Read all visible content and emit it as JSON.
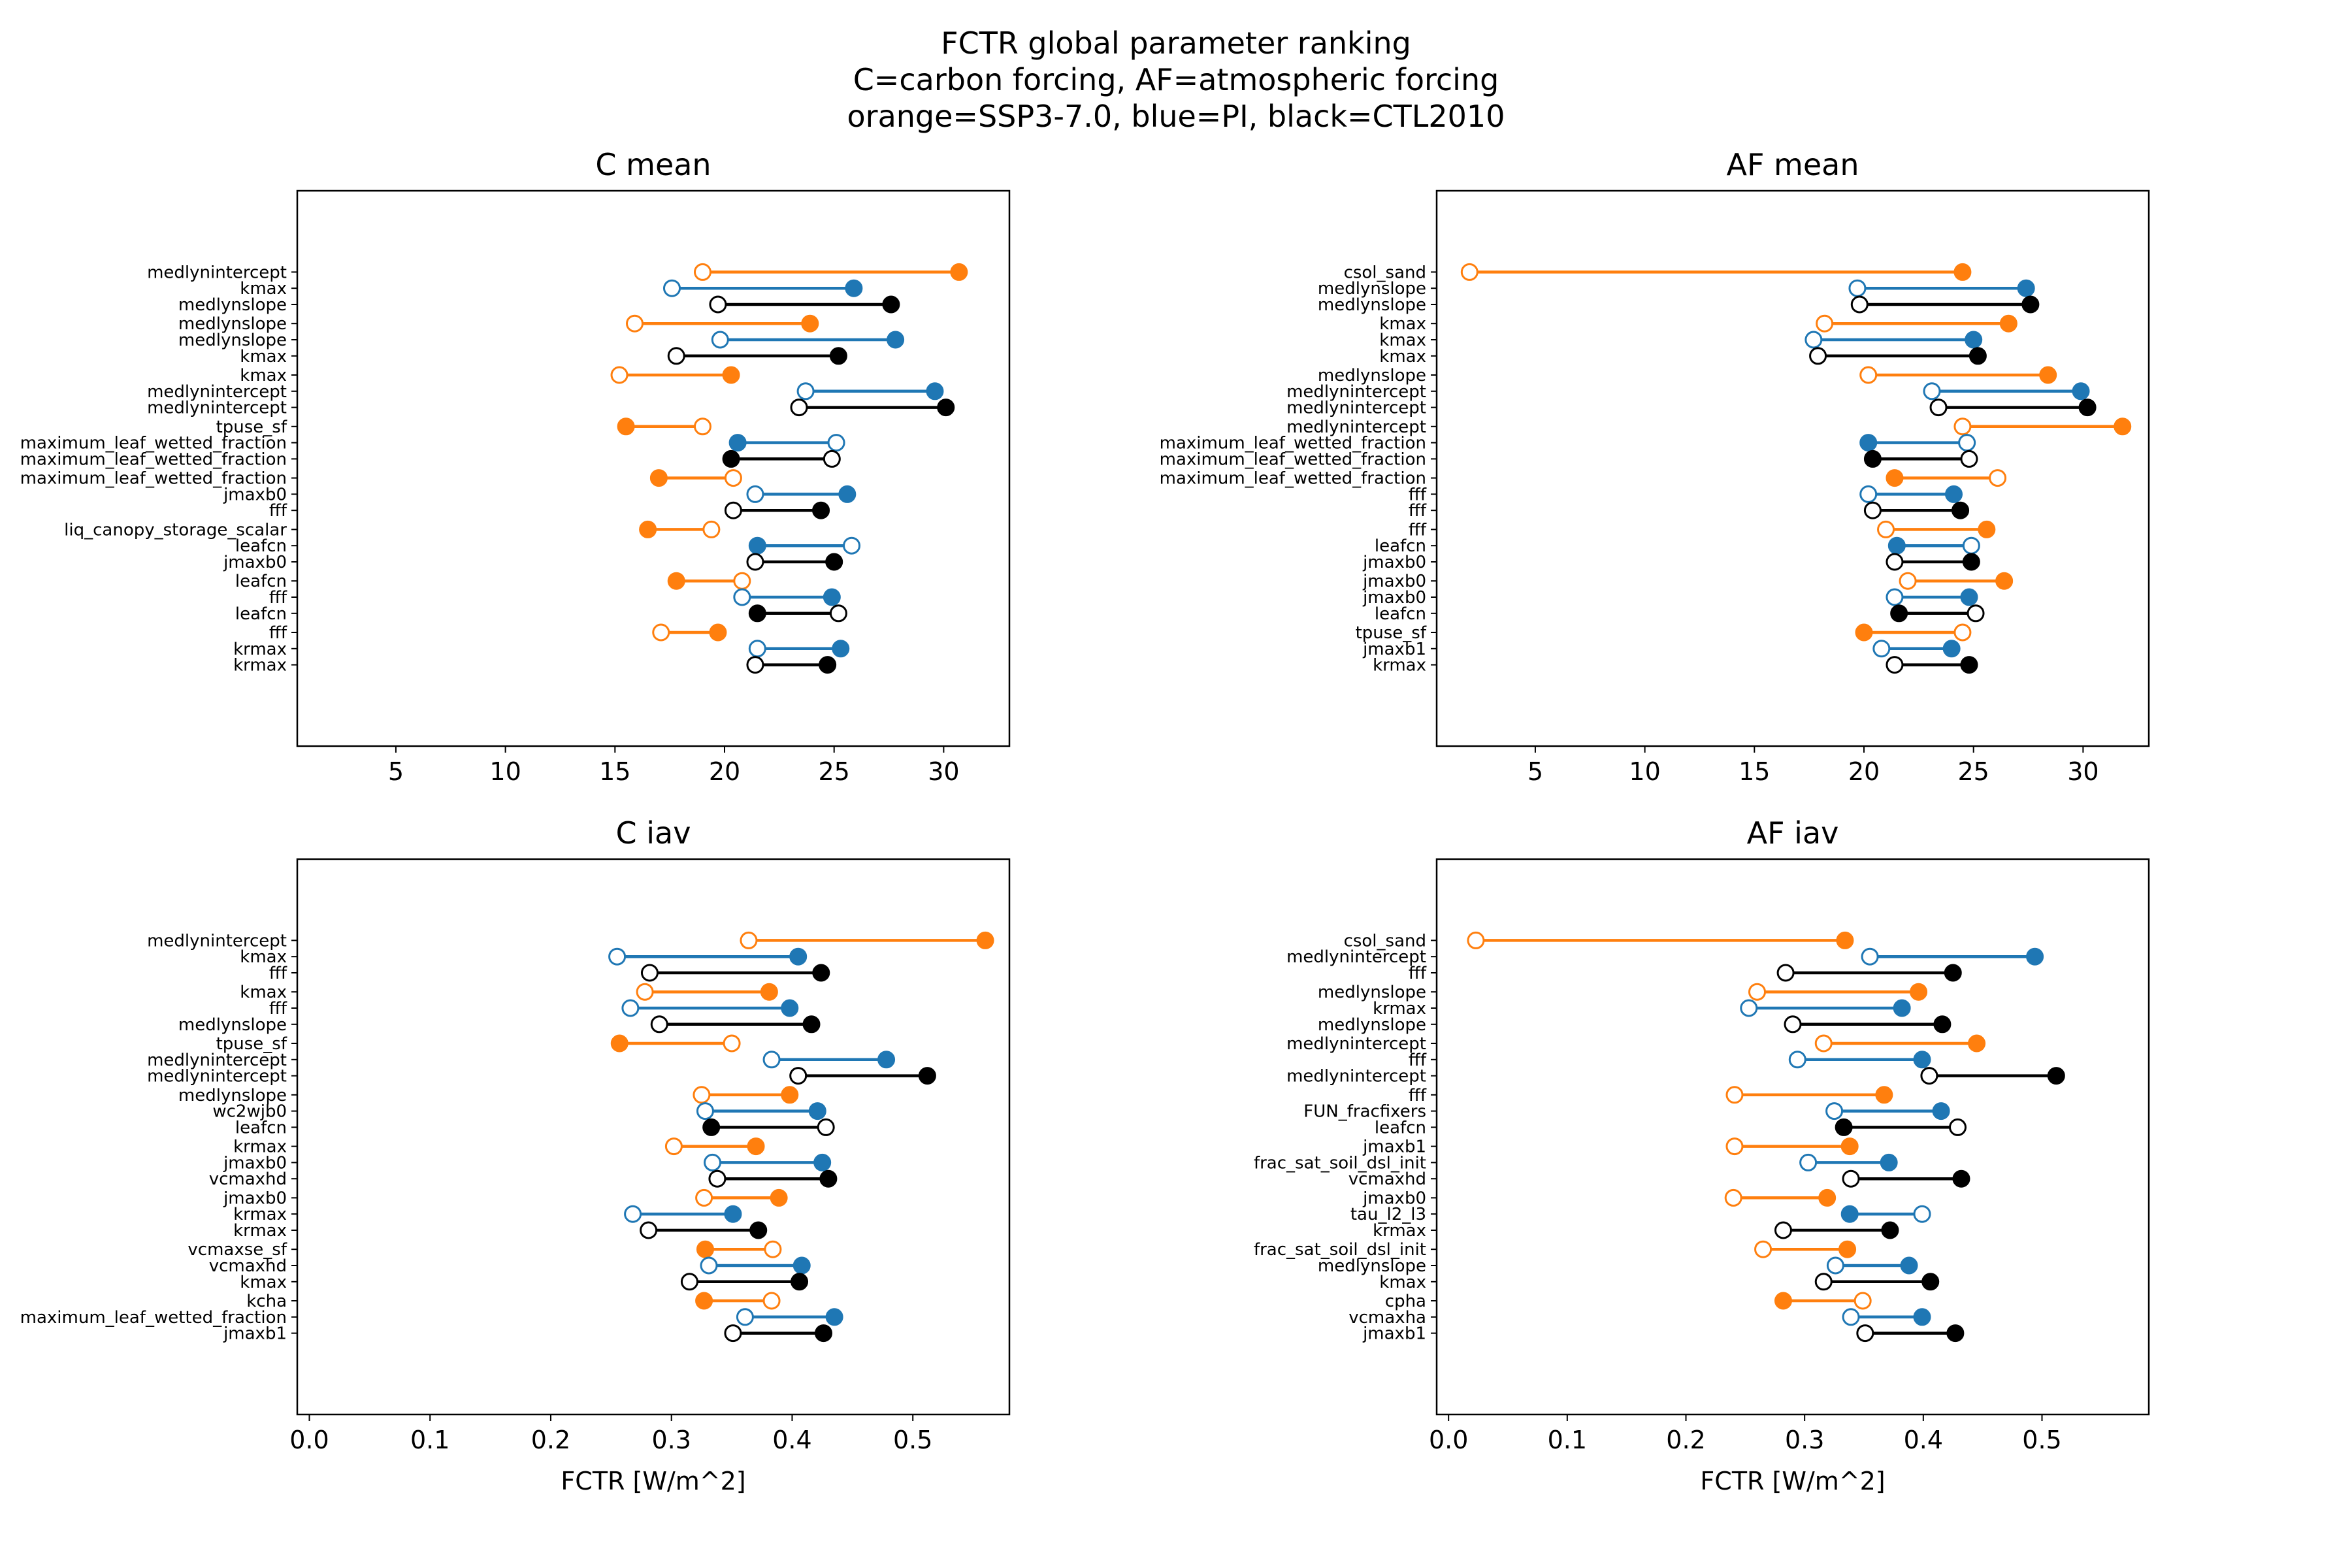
{
  "figure": {
    "title_lines": [
      "FCTR global parameter ranking",
      "C=carbon forcing, AF=atmospheric forcing",
      "orange=SSP3-7.0, blue=PI, black=CTL2010"
    ]
  },
  "colors": {
    "SSP3-7.0": "#ff7f0e",
    "PI": "#1f77b4",
    "CTL2010": "#000000"
  },
  "chart_data": [
    {
      "type": "dumbbell",
      "title": "C mean",
      "xlabel": "",
      "xlim": [
        0.5,
        33.0
      ],
      "xticks": [
        5,
        10,
        15,
        20,
        25,
        30
      ],
      "xtick_labels": [
        "5",
        "10",
        "15",
        "20",
        "25",
        "30"
      ],
      "marker_legend": "open circle = start value, filled circle = end value",
      "groups": [
        [
          {
            "label": "medlynintercept",
            "series": "SSP3-7.0",
            "open": 19.0,
            "filled": 30.7
          },
          {
            "label": "kmax",
            "series": "PI",
            "open": 17.6,
            "filled": 25.9
          },
          {
            "label": "medlynslope",
            "series": "CTL2010",
            "open": 19.7,
            "filled": 27.6
          }
        ],
        [
          {
            "label": "medlynslope",
            "series": "SSP3-7.0",
            "open": 15.9,
            "filled": 23.9
          },
          {
            "label": "medlynslope",
            "series": "PI",
            "open": 19.8,
            "filled": 27.8
          },
          {
            "label": "kmax",
            "series": "CTL2010",
            "open": 17.8,
            "filled": 25.2
          }
        ],
        [
          {
            "label": "kmax",
            "series": "SSP3-7.0",
            "open": 15.2,
            "filled": 20.3
          },
          {
            "label": "medlynintercept",
            "series": "PI",
            "open": 23.7,
            "filled": 29.6
          },
          {
            "label": "medlynintercept",
            "series": "CTL2010",
            "open": 23.4,
            "filled": 30.1
          }
        ],
        [
          {
            "label": "tpuse_sf",
            "series": "SSP3-7.0",
            "open": 19.0,
            "filled": 15.5
          },
          {
            "label": "maximum_leaf_wetted_fraction",
            "series": "PI",
            "open": 25.1,
            "filled": 20.6
          },
          {
            "label": "maximum_leaf_wetted_fraction",
            "series": "CTL2010",
            "open": 24.9,
            "filled": 20.3
          }
        ],
        [
          {
            "label": "maximum_leaf_wetted_fraction",
            "series": "SSP3-7.0",
            "open": 20.4,
            "filled": 17.0
          },
          {
            "label": "jmaxb0",
            "series": "PI",
            "open": 21.4,
            "filled": 25.6
          },
          {
            "label": "fff",
            "series": "CTL2010",
            "open": 20.4,
            "filled": 24.4
          }
        ],
        [
          {
            "label": "liq_canopy_storage_scalar",
            "series": "SSP3-7.0",
            "open": 19.4,
            "filled": 16.5
          },
          {
            "label": "leafcn",
            "series": "PI",
            "open": 25.8,
            "filled": 21.5
          },
          {
            "label": "jmaxb0",
            "series": "CTL2010",
            "open": 21.4,
            "filled": 25.0
          }
        ],
        [
          {
            "label": "leafcn",
            "series": "SSP3-7.0",
            "open": 20.8,
            "filled": 17.8
          },
          {
            "label": "fff",
            "series": "PI",
            "open": 20.8,
            "filled": 24.9
          },
          {
            "label": "leafcn",
            "series": "CTL2010",
            "open": 25.2,
            "filled": 21.5
          }
        ],
        [
          {
            "label": "fff",
            "series": "SSP3-7.0",
            "open": 17.1,
            "filled": 19.7
          },
          {
            "label": "krmax",
            "series": "PI",
            "open": 21.5,
            "filled": 25.3
          },
          {
            "label": "krmax",
            "series": "CTL2010",
            "open": 21.4,
            "filled": 24.7
          }
        ]
      ]
    },
    {
      "type": "dumbbell",
      "title": "AF mean",
      "xlabel": "",
      "xlim": [
        0.5,
        33.0
      ],
      "xticks": [
        5,
        10,
        15,
        20,
        25,
        30
      ],
      "xtick_labels": [
        "5",
        "10",
        "15",
        "20",
        "25",
        "30"
      ],
      "marker_legend": "open circle = start value, filled circle = end value",
      "groups": [
        [
          {
            "label": "csol_sand",
            "series": "SSP3-7.0",
            "open": 2.0,
            "filled": 24.5
          },
          {
            "label": "medlynslope",
            "series": "PI",
            "open": 19.7,
            "filled": 27.4
          },
          {
            "label": "medlynslope",
            "series": "CTL2010",
            "open": 19.8,
            "filled": 27.6
          }
        ],
        [
          {
            "label": "kmax",
            "series": "SSP3-7.0",
            "open": 18.2,
            "filled": 26.6
          },
          {
            "label": "kmax",
            "series": "PI",
            "open": 17.7,
            "filled": 25.0
          },
          {
            "label": "kmax",
            "series": "CTL2010",
            "open": 17.9,
            "filled": 25.2
          }
        ],
        [
          {
            "label": "medlynslope",
            "series": "SSP3-7.0",
            "open": 20.2,
            "filled": 28.4
          },
          {
            "label": "medlynintercept",
            "series": "PI",
            "open": 23.1,
            "filled": 29.9
          },
          {
            "label": "medlynintercept",
            "series": "CTL2010",
            "open": 23.4,
            "filled": 30.2
          }
        ],
        [
          {
            "label": "medlynintercept",
            "series": "SSP3-7.0",
            "open": 24.5,
            "filled": 31.8
          },
          {
            "label": "maximum_leaf_wetted_fraction",
            "series": "PI",
            "open": 24.7,
            "filled": 20.2
          },
          {
            "label": "maximum_leaf_wetted_fraction",
            "series": "CTL2010",
            "open": 24.8,
            "filled": 20.4
          }
        ],
        [
          {
            "label": "maximum_leaf_wetted_fraction",
            "series": "SSP3-7.0",
            "open": 26.1,
            "filled": 21.4
          },
          {
            "label": "fff",
            "series": "PI",
            "open": 20.2,
            "filled": 24.1
          },
          {
            "label": "fff",
            "series": "CTL2010",
            "open": 20.4,
            "filled": 24.4
          }
        ],
        [
          {
            "label": "fff",
            "series": "SSP3-7.0",
            "open": 21.0,
            "filled": 25.6
          },
          {
            "label": "leafcn",
            "series": "PI",
            "open": 24.9,
            "filled": 21.5
          },
          {
            "label": "jmaxb0",
            "series": "CTL2010",
            "open": 21.4,
            "filled": 24.9
          }
        ],
        [
          {
            "label": "jmaxb0",
            "series": "SSP3-7.0",
            "open": 22.0,
            "filled": 26.4
          },
          {
            "label": "jmaxb0",
            "series": "PI",
            "open": 21.4,
            "filled": 24.8
          },
          {
            "label": "leafcn",
            "series": "CTL2010",
            "open": 25.1,
            "filled": 21.6
          }
        ],
        [
          {
            "label": "tpuse_sf",
            "series": "SSP3-7.0",
            "open": 24.5,
            "filled": 20.0
          },
          {
            "label": "jmaxb1",
            "series": "PI",
            "open": 20.8,
            "filled": 24.0
          },
          {
            "label": "krmax",
            "series": "CTL2010",
            "open": 21.4,
            "filled": 24.8
          }
        ]
      ]
    },
    {
      "type": "dumbbell",
      "title": "C iav",
      "xlabel": "FCTR [W/m^2]",
      "xlim": [
        -0.01,
        0.58
      ],
      "xticks": [
        0.0,
        0.1,
        0.2,
        0.3,
        0.4,
        0.5
      ],
      "xtick_labels": [
        "0.0",
        "0.1",
        "0.2",
        "0.3",
        "0.4",
        "0.5"
      ],
      "marker_legend": "open circle = start value, filled circle = end value",
      "groups": [
        [
          {
            "label": "medlynintercept",
            "series": "SSP3-7.0",
            "open": 0.364,
            "filled": 0.56
          },
          {
            "label": "kmax",
            "series": "PI",
            "open": 0.255,
            "filled": 0.405
          },
          {
            "label": "fff",
            "series": "CTL2010",
            "open": 0.282,
            "filled": 0.424
          }
        ],
        [
          {
            "label": "kmax",
            "series": "SSP3-7.0",
            "open": 0.278,
            "filled": 0.381
          },
          {
            "label": "fff",
            "series": "PI",
            "open": 0.266,
            "filled": 0.398
          },
          {
            "label": "medlynslope",
            "series": "CTL2010",
            "open": 0.29,
            "filled": 0.416
          }
        ],
        [
          {
            "label": "tpuse_sf",
            "series": "SSP3-7.0",
            "open": 0.35,
            "filled": 0.257
          },
          {
            "label": "medlynintercept",
            "series": "PI",
            "open": 0.383,
            "filled": 0.478
          },
          {
            "label": "medlynintercept",
            "series": "CTL2010",
            "open": 0.405,
            "filled": 0.512
          }
        ],
        [
          {
            "label": "medlynslope",
            "series": "SSP3-7.0",
            "open": 0.325,
            "filled": 0.398
          },
          {
            "label": "wc2wjb0",
            "series": "PI",
            "open": 0.328,
            "filled": 0.421
          },
          {
            "label": "leafcn",
            "series": "CTL2010",
            "open": 0.428,
            "filled": 0.333
          }
        ],
        [
          {
            "label": "krmax",
            "series": "SSP3-7.0",
            "open": 0.302,
            "filled": 0.37
          },
          {
            "label": "jmaxb0",
            "series": "PI",
            "open": 0.334,
            "filled": 0.425
          },
          {
            "label": "vcmaxhd",
            "series": "CTL2010",
            "open": 0.338,
            "filled": 0.43
          }
        ],
        [
          {
            "label": "jmaxb0",
            "series": "SSP3-7.0",
            "open": 0.327,
            "filled": 0.389
          },
          {
            "label": "krmax",
            "series": "PI",
            "open": 0.268,
            "filled": 0.351
          },
          {
            "label": "krmax",
            "series": "CTL2010",
            "open": 0.281,
            "filled": 0.372
          }
        ],
        [
          {
            "label": "vcmaxse_sf",
            "series": "SSP3-7.0",
            "open": 0.384,
            "filled": 0.328
          },
          {
            "label": "vcmaxhd",
            "series": "PI",
            "open": 0.331,
            "filled": 0.408
          },
          {
            "label": "kmax",
            "series": "CTL2010",
            "open": 0.315,
            "filled": 0.406
          }
        ],
        [
          {
            "label": "kcha",
            "series": "SSP3-7.0",
            "open": 0.383,
            "filled": 0.327
          },
          {
            "label": "maximum_leaf_wetted_fraction",
            "series": "PI",
            "open": 0.361,
            "filled": 0.435
          },
          {
            "label": "jmaxb1",
            "series": "CTL2010",
            "open": 0.351,
            "filled": 0.426
          }
        ]
      ]
    },
    {
      "type": "dumbbell",
      "title": "AF iav",
      "xlabel": "FCTR [W/m^2]",
      "xlim": [
        -0.01,
        0.59
      ],
      "xticks": [
        0.0,
        0.1,
        0.2,
        0.3,
        0.4,
        0.5
      ],
      "xtick_labels": [
        "0.0",
        "0.1",
        "0.2",
        "0.3",
        "0.4",
        "0.5"
      ],
      "marker_legend": "open circle = start value, filled circle = end value",
      "groups": [
        [
          {
            "label": "csol_sand",
            "series": "SSP3-7.0",
            "open": 0.023,
            "filled": 0.334
          },
          {
            "label": "medlynintercept",
            "series": "PI",
            "open": 0.355,
            "filled": 0.494
          },
          {
            "label": "fff",
            "series": "CTL2010",
            "open": 0.284,
            "filled": 0.425
          }
        ],
        [
          {
            "label": "medlynslope",
            "series": "SSP3-7.0",
            "open": 0.26,
            "filled": 0.396
          },
          {
            "label": "krmax",
            "series": "PI",
            "open": 0.253,
            "filled": 0.382
          },
          {
            "label": "medlynslope",
            "series": "CTL2010",
            "open": 0.29,
            "filled": 0.416
          }
        ],
        [
          {
            "label": "medlynintercept",
            "series": "SSP3-7.0",
            "open": 0.316,
            "filled": 0.445
          },
          {
            "label": "fff",
            "series": "PI",
            "open": 0.294,
            "filled": 0.399
          },
          {
            "label": "medlynintercept",
            "series": "CTL2010",
            "open": 0.405,
            "filled": 0.512
          }
        ],
        [
          {
            "label": "fff",
            "series": "SSP3-7.0",
            "open": 0.241,
            "filled": 0.367
          },
          {
            "label": "FUN_fracfixers",
            "series": "PI",
            "open": 0.325,
            "filled": 0.415
          },
          {
            "label": "leafcn",
            "series": "CTL2010",
            "open": 0.429,
            "filled": 0.333
          }
        ],
        [
          {
            "label": "jmaxb1",
            "series": "SSP3-7.0",
            "open": 0.241,
            "filled": 0.338
          },
          {
            "label": "frac_sat_soil_dsl_init",
            "series": "PI",
            "open": 0.303,
            "filled": 0.371
          },
          {
            "label": "vcmaxhd",
            "series": "CTL2010",
            "open": 0.339,
            "filled": 0.432
          }
        ],
        [
          {
            "label": "jmaxb0",
            "series": "SSP3-7.0",
            "open": 0.24,
            "filled": 0.319
          },
          {
            "label": "tau_l2_l3",
            "series": "PI",
            "open": 0.399,
            "filled": 0.338
          },
          {
            "label": "krmax",
            "series": "CTL2010",
            "open": 0.282,
            "filled": 0.372
          }
        ],
        [
          {
            "label": "frac_sat_soil_dsl_init",
            "series": "SSP3-7.0",
            "open": 0.265,
            "filled": 0.336
          },
          {
            "label": "medlynslope",
            "series": "PI",
            "open": 0.326,
            "filled": 0.388
          },
          {
            "label": "kmax",
            "series": "CTL2010",
            "open": 0.316,
            "filled": 0.406
          }
        ],
        [
          {
            "label": "cpha",
            "series": "SSP3-7.0",
            "open": 0.349,
            "filled": 0.282
          },
          {
            "label": "vcmaxha",
            "series": "PI",
            "open": 0.339,
            "filled": 0.399
          },
          {
            "label": "jmaxb1",
            "series": "CTL2010",
            "open": 0.351,
            "filled": 0.427
          }
        ]
      ]
    }
  ]
}
